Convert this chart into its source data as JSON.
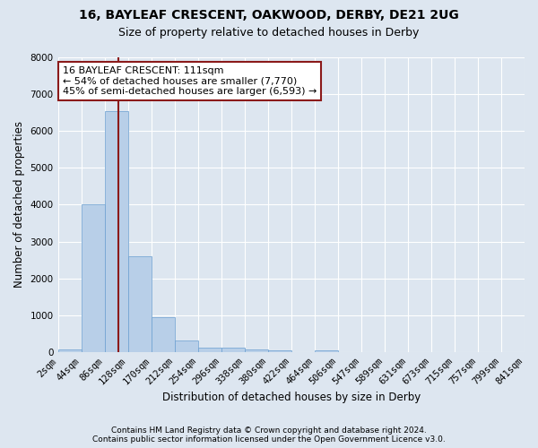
{
  "title_line1": "16, BAYLEAF CRESCENT, OAKWOOD, DERBY, DE21 2UG",
  "title_line2": "Size of property relative to detached houses in Derby",
  "xlabel": "Distribution of detached houses by size in Derby",
  "ylabel": "Number of detached properties",
  "footer_line1": "Contains HM Land Registry data © Crown copyright and database right 2024.",
  "footer_line2": "Contains public sector information licensed under the Open Government Licence v3.0.",
  "annotation_line1": "16 BAYLEAF CRESCENT: 111sqm",
  "annotation_line2": "← 54% of detached houses are smaller (7,770)",
  "annotation_line3": "45% of semi-detached houses are larger (6,593) →",
  "property_size": 111,
  "bin_edges": [
    2,
    44,
    86,
    128,
    170,
    212,
    254,
    296,
    338,
    380,
    422,
    464,
    506,
    547,
    589,
    631,
    673,
    715,
    757,
    799,
    841
  ],
  "bar_heights": [
    70,
    4000,
    6550,
    2600,
    950,
    320,
    130,
    120,
    70,
    60,
    0,
    60,
    0,
    0,
    0,
    0,
    0,
    0,
    0,
    0
  ],
  "bar_color": "#b8cfe8",
  "bar_edgecolor": "#6a9fd0",
  "vline_color": "#8b1a1a",
  "vline_x": 111,
  "annotation_box_edgecolor": "#8b1a1a",
  "annotation_box_facecolor": "#ffffff",
  "background_color": "#dde6f0",
  "ylim": [
    0,
    8000
  ],
  "yticks": [
    0,
    1000,
    2000,
    3000,
    4000,
    5000,
    6000,
    7000,
    8000
  ],
  "grid_color": "#ffffff",
  "title_fontsize": 10,
  "subtitle_fontsize": 9,
  "axis_label_fontsize": 8.5,
  "tick_fontsize": 7.5,
  "footer_fontsize": 6.5
}
